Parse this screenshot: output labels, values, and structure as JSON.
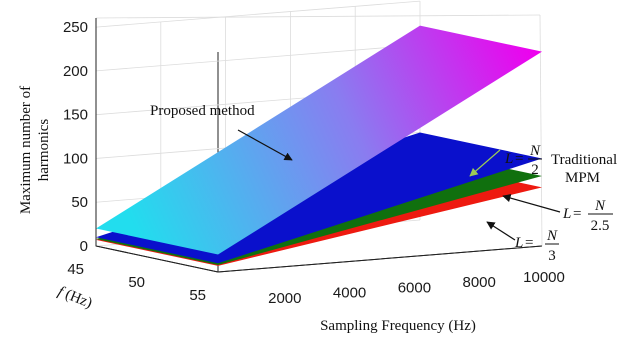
{
  "chart_data": {
    "type": "surface3d",
    "title": "",
    "zlabel": "Maximum number of harmonics",
    "zlabel_lines": [
      "Maximum number of",
      "harmonics"
    ],
    "xlabel": "Sampling Frequency (Hz)",
    "ylabel_italic": "f",
    "ylabel_rest": " (Hz)",
    "x_ticks": [
      "2000",
      "4000",
      "6000",
      "8000",
      "10000"
    ],
    "x_tick_values": [
      2000,
      4000,
      6000,
      8000,
      10000
    ],
    "y_ticks": [
      "45",
      "50",
      "55"
    ],
    "y_tick_values": [
      45,
      50,
      55
    ],
    "z_ticks": [
      "0",
      "50",
      "100",
      "150",
      "200",
      "250"
    ],
    "z_tick_values": [
      0,
      50,
      100,
      150,
      200,
      250
    ],
    "xlim": [
      0,
      10000
    ],
    "ylim": [
      45,
      55
    ],
    "zlim": [
      0,
      250
    ],
    "grid": true,
    "series": [
      {
        "name": "Proposed method",
        "color_low": "#22ddee",
        "color_high": "#ee00ee",
        "x": [
          0,
          10000
        ],
        "values": [
          20,
          222
        ]
      },
      {
        "name": "L = N/2",
        "color": "#0a10cc",
        "x": [
          0,
          10000
        ],
        "values": [
          10,
          100
        ]
      },
      {
        "name": "L = N/2.5",
        "color": "#10700e",
        "x": [
          0,
          10000
        ],
        "values": [
          8,
          80
        ]
      },
      {
        "name": "L = N/3",
        "color": "#ee1a10",
        "x": [
          0,
          10000
        ],
        "values": [
          7,
          67
        ]
      }
    ],
    "annotations": {
      "proposed": "Proposed method",
      "traditional_line1": "Traditional",
      "traditional_line2": "MPM",
      "L_sym": "L",
      "eq": " = ",
      "N": "N",
      "den_1": "2",
      "den_2": "2.5",
      "den_3": "3"
    }
  }
}
